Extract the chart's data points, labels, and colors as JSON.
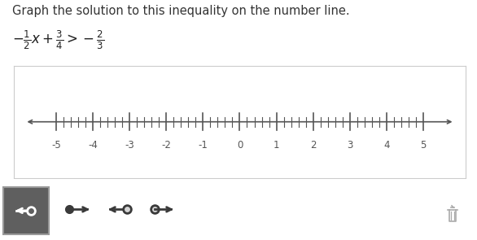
{
  "title": "Graph the solution to this inequality on the number line.",
  "number_line_min": -5,
  "number_line_max": 5,
  "tick_labels": [
    -5,
    -4,
    -3,
    -2,
    -1,
    0,
    1,
    2,
    3,
    4,
    5
  ],
  "bg_color": "#ffffff",
  "panel_border_color": "#cccccc",
  "toolbar_bg": "#d5d5d5",
  "toolbar_icon_bg": "#5f5f5f",
  "icon_dark": "#3a3a3a",
  "title_color": "#333333",
  "number_line_color": "#555555",
  "minor_step": 0.2
}
